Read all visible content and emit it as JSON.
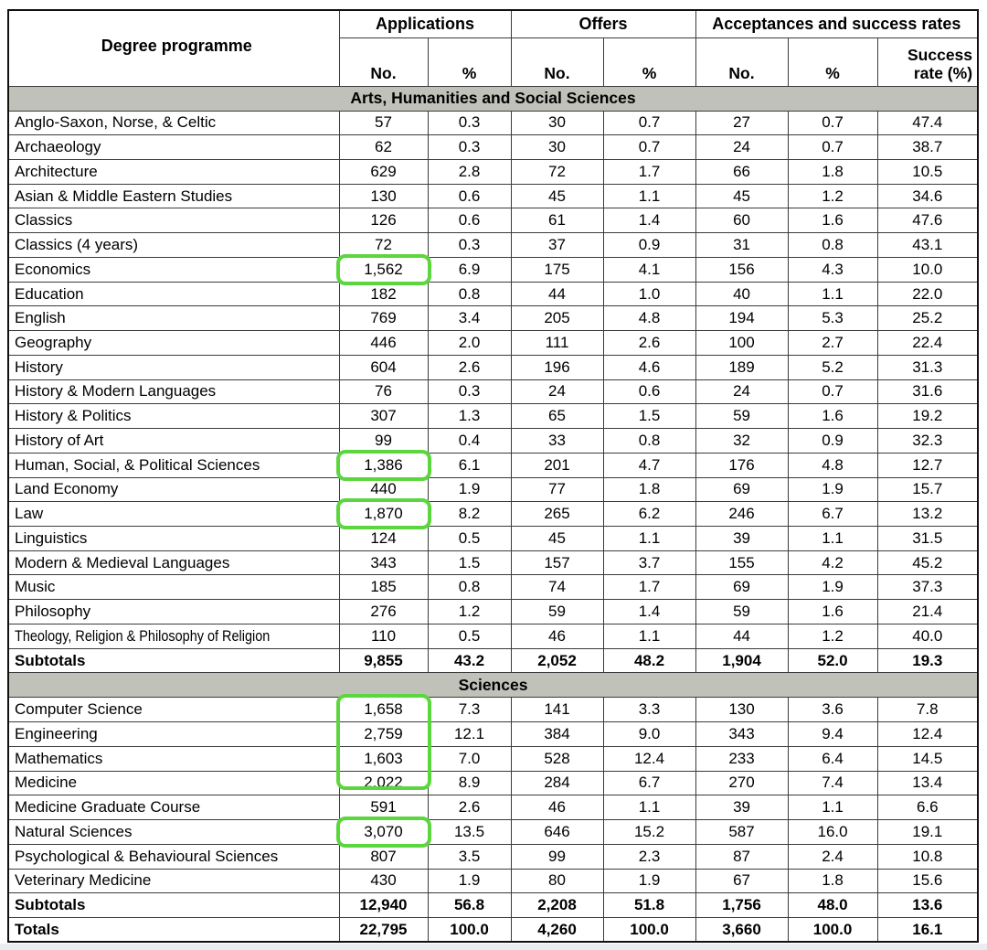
{
  "table": {
    "degree_header": "Degree programme",
    "groups": [
      {
        "label": "Applications",
        "cols": [
          "No.",
          "%"
        ]
      },
      {
        "label": "Offers",
        "cols": [
          "No.",
          "%"
        ]
      },
      {
        "label": "Acceptances and success rates",
        "cols": [
          "No.",
          "%",
          "Success\nrate (%)"
        ]
      }
    ],
    "sections": [
      {
        "title": "Arts, Humanities and Social Sciences",
        "rows": [
          {
            "label": "Anglo-Saxon, Norse, & Celtic",
            "values": [
              "57",
              "0.3",
              "30",
              "0.7",
              "27",
              "0.7",
              "47.4"
            ]
          },
          {
            "label": "Archaeology",
            "values": [
              "62",
              "0.3",
              "30",
              "0.7",
              "24",
              "0.7",
              "38.7"
            ]
          },
          {
            "label": "Architecture",
            "values": [
              "629",
              "2.8",
              "72",
              "1.7",
              "66",
              "1.8",
              "10.5"
            ]
          },
          {
            "label": "Asian & Middle Eastern Studies",
            "values": [
              "130",
              "0.6",
              "45",
              "1.1",
              "45",
              "1.2",
              "34.6"
            ]
          },
          {
            "label": "Classics",
            "values": [
              "126",
              "0.6",
              "61",
              "1.4",
              "60",
              "1.6",
              "47.6"
            ]
          },
          {
            "label": "Classics (4 years)",
            "values": [
              "72",
              "0.3",
              "37",
              "0.9",
              "31",
              "0.8",
              "43.1"
            ]
          },
          {
            "label": "Economics",
            "values": [
              "1,562",
              "6.9",
              "175",
              "4.1",
              "156",
              "4.3",
              "10.0"
            ]
          },
          {
            "label": "Education",
            "values": [
              "182",
              "0.8",
              "44",
              "1.0",
              "40",
              "1.1",
              "22.0"
            ]
          },
          {
            "label": "English",
            "values": [
              "769",
              "3.4",
              "205",
              "4.8",
              "194",
              "5.3",
              "25.2"
            ]
          },
          {
            "label": "Geography",
            "values": [
              "446",
              "2.0",
              "111",
              "2.6",
              "100",
              "2.7",
              "22.4"
            ]
          },
          {
            "label": "History",
            "values": [
              "604",
              "2.6",
              "196",
              "4.6",
              "189",
              "5.2",
              "31.3"
            ]
          },
          {
            "label": "History & Modern Languages",
            "values": [
              "76",
              "0.3",
              "24",
              "0.6",
              "24",
              "0.7",
              "31.6"
            ]
          },
          {
            "label": "History & Politics",
            "values": [
              "307",
              "1.3",
              "65",
              "1.5",
              "59",
              "1.6",
              "19.2"
            ]
          },
          {
            "label": "History of Art",
            "values": [
              "99",
              "0.4",
              "33",
              "0.8",
              "32",
              "0.9",
              "32.3"
            ]
          },
          {
            "label": "Human, Social, & Political Sciences",
            "values": [
              "1,386",
              "6.1",
              "201",
              "4.7",
              "176",
              "4.8",
              "12.7"
            ]
          },
          {
            "label": "Land Economy",
            "values": [
              "440",
              "1.9",
              "77",
              "1.8",
              "69",
              "1.9",
              "15.7"
            ]
          },
          {
            "label": "Law",
            "values": [
              "1,870",
              "8.2",
              "265",
              "6.2",
              "246",
              "6.7",
              "13.2"
            ]
          },
          {
            "label": "Linguistics",
            "values": [
              "124",
              "0.5",
              "45",
              "1.1",
              "39",
              "1.1",
              "31.5"
            ]
          },
          {
            "label": "Modern & Medieval Languages",
            "values": [
              "343",
              "1.5",
              "157",
              "3.7",
              "155",
              "4.2",
              "45.2"
            ]
          },
          {
            "label": "Music",
            "values": [
              "185",
              "0.8",
              "74",
              "1.7",
              "69",
              "1.9",
              "37.3"
            ]
          },
          {
            "label": "Philosophy",
            "values": [
              "276",
              "1.2",
              "59",
              "1.4",
              "59",
              "1.6",
              "21.4"
            ]
          },
          {
            "label": "Theology, Religion & Philosophy of Religion",
            "values": [
              "110",
              "0.5",
              "46",
              "1.1",
              "44",
              "1.2",
              "40.0"
            ]
          }
        ],
        "subtotal": {
          "label": "Subtotals",
          "values": [
            "9,855",
            "43.2",
            "2,052",
            "48.2",
            "1,904",
            "52.0",
            "19.3"
          ]
        }
      },
      {
        "title": "Sciences",
        "rows": [
          {
            "label": "Computer Science",
            "values": [
              "1,658",
              "7.3",
              "141",
              "3.3",
              "130",
              "3.6",
              "7.8"
            ]
          },
          {
            "label": "Engineering",
            "values": [
              "2,759",
              "12.1",
              "384",
              "9.0",
              "343",
              "9.4",
              "12.4"
            ]
          },
          {
            "label": "Mathematics",
            "values": [
              "1,603",
              "7.0",
              "528",
              "12.4",
              "233",
              "6.4",
              "14.5"
            ]
          },
          {
            "label": "Medicine",
            "values": [
              "2,022",
              "8.9",
              "284",
              "6.7",
              "270",
              "7.4",
              "13.4"
            ]
          },
          {
            "label": "Medicine Graduate Course",
            "values": [
              "591",
              "2.6",
              "46",
              "1.1",
              "39",
              "1.1",
              "6.6"
            ]
          },
          {
            "label": "Natural Sciences",
            "values": [
              "3,070",
              "13.5",
              "646",
              "15.2",
              "587",
              "16.0",
              "19.1"
            ]
          },
          {
            "label": "Psychological & Behavioural Sciences",
            "values": [
              "807",
              "3.5",
              "99",
              "2.3",
              "87",
              "2.4",
              "10.8"
            ]
          },
          {
            "label": "Veterinary Medicine",
            "values": [
              "430",
              "1.9",
              "80",
              "1.9",
              "67",
              "1.8",
              "15.6"
            ]
          }
        ],
        "subtotal": {
          "label": "Subtotals",
          "values": [
            "12,940",
            "56.8",
            "2,208",
            "51.8",
            "1,756",
            "48.0",
            "13.6"
          ]
        }
      }
    ],
    "totals": {
      "label": "Totals",
      "values": [
        "22,795",
        "100.0",
        "4,260",
        "100.0",
        "3,660",
        "100.0",
        "16.1"
      ]
    }
  },
  "highlights": {
    "color": "#5cd63e",
    "target_column": "applications_no",
    "boxes": [
      {
        "section": 0,
        "row_from": 6,
        "row_to": 6
      },
      {
        "section": 0,
        "row_from": 14,
        "row_to": 14
      },
      {
        "section": 0,
        "row_from": 16,
        "row_to": 16
      },
      {
        "section": 1,
        "row_from": 0,
        "row_to": 3
      },
      {
        "section": 1,
        "row_from": 5,
        "row_to": 5
      }
    ]
  }
}
